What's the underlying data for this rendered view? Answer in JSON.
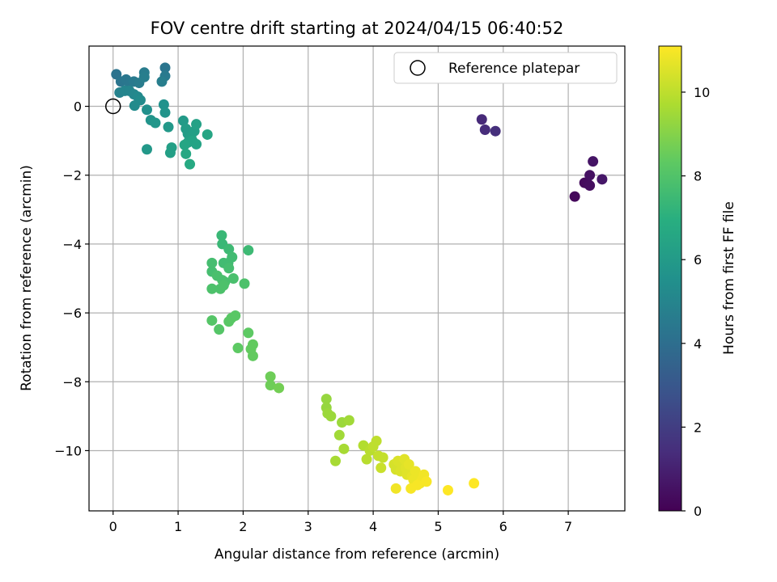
{
  "chart_data": {
    "type": "scatter",
    "title": "FOV centre drift starting at 2024/04/15 06:40:52",
    "xlabel": "Angular distance from reference (arcmin)",
    "ylabel": "Rotation from reference (arcmin)",
    "xlim": [
      -0.37,
      7.87
    ],
    "ylim": [
      -11.75,
      1.75
    ],
    "xticks": [
      0,
      1,
      2,
      3,
      4,
      5,
      6,
      7
    ],
    "yticks": [
      0,
      -2,
      -4,
      -6,
      -8,
      -10
    ],
    "grid": true,
    "colorscale": "viridis",
    "colorbar": {
      "label": "Hours from first FF file",
      "range": [
        0,
        11.1
      ],
      "ticks": [
        0,
        2,
        4,
        6,
        8,
        10
      ]
    },
    "legend": {
      "position": "top-right",
      "entries": [
        "Reference platepar"
      ]
    },
    "reference_point": {
      "x": 0,
      "y": 0
    },
    "series": [
      {
        "points": [
          {
            "x": 7.1,
            "y": -2.62,
            "c": 0.2
          },
          {
            "x": 7.25,
            "y": -2.22,
            "c": 0.3
          },
          {
            "x": 7.3,
            "y": -2.25,
            "c": 0.35
          },
          {
            "x": 7.33,
            "y": -2.3,
            "c": 0.4
          },
          {
            "x": 7.33,
            "y": -2.0,
            "c": 0.5
          },
          {
            "x": 7.38,
            "y": -1.6,
            "c": 0.6
          },
          {
            "x": 7.52,
            "y": -2.12,
            "c": 0.7
          },
          {
            "x": 5.67,
            "y": -0.38,
            "c": 1.3
          },
          {
            "x": 5.72,
            "y": -0.68,
            "c": 1.4
          },
          {
            "x": 5.88,
            "y": -0.72,
            "c": 1.5
          },
          {
            "x": 0.05,
            "y": 0.93,
            "c": 4.2
          },
          {
            "x": 0.12,
            "y": 0.72,
            "c": 4.3
          },
          {
            "x": 0.2,
            "y": 0.78,
            "c": 4.4
          },
          {
            "x": 0.25,
            "y": 0.68,
            "c": 4.4
          },
          {
            "x": 0.32,
            "y": 0.72,
            "c": 4.5
          },
          {
            "x": 0.4,
            "y": 0.68,
            "c": 4.6
          },
          {
            "x": 0.48,
            "y": 0.98,
            "c": 4.6
          },
          {
            "x": 0.48,
            "y": 0.85,
            "c": 4.7
          },
          {
            "x": 0.8,
            "y": 1.12,
            "c": 4.3
          },
          {
            "x": 0.8,
            "y": 0.88,
            "c": 4.5
          },
          {
            "x": 0.75,
            "y": 0.72,
            "c": 4.7
          },
          {
            "x": 0.1,
            "y": 0.4,
            "c": 4.9
          },
          {
            "x": 0.18,
            "y": 0.45,
            "c": 5.0
          },
          {
            "x": 0.25,
            "y": 0.45,
            "c": 5.0
          },
          {
            "x": 0.32,
            "y": 0.35,
            "c": 5.1
          },
          {
            "x": 0.38,
            "y": 0.28,
            "c": 5.2
          },
          {
            "x": 0.42,
            "y": 0.18,
            "c": 5.3
          },
          {
            "x": 0.33,
            "y": 0.02,
            "c": 5.3
          },
          {
            "x": 0.52,
            "y": -0.1,
            "c": 5.5
          },
          {
            "x": 0.78,
            "y": 0.05,
            "c": 5.6
          },
          {
            "x": 0.8,
            "y": -0.18,
            "c": 5.7
          },
          {
            "x": 0.58,
            "y": -0.4,
            "c": 5.7
          },
          {
            "x": 0.65,
            "y": -0.48,
            "c": 5.8
          },
          {
            "x": 0.85,
            "y": -0.6,
            "c": 5.9
          },
          {
            "x": 1.08,
            "y": -0.42,
            "c": 6.0
          },
          {
            "x": 1.12,
            "y": -0.65,
            "c": 6.1
          },
          {
            "x": 1.15,
            "y": -0.8,
            "c": 6.1
          },
          {
            "x": 1.2,
            "y": -0.88,
            "c": 6.2
          },
          {
            "x": 1.25,
            "y": -0.72,
            "c": 6.2
          },
          {
            "x": 1.28,
            "y": -0.52,
            "c": 6.3
          },
          {
            "x": 1.15,
            "y": -1.05,
            "c": 6.3
          },
          {
            "x": 1.22,
            "y": -1.0,
            "c": 6.4
          },
          {
            "x": 1.28,
            "y": -1.1,
            "c": 6.4
          },
          {
            "x": 1.1,
            "y": -1.12,
            "c": 6.5
          },
          {
            "x": 1.45,
            "y": -0.82,
            "c": 6.5
          },
          {
            "x": 0.52,
            "y": -1.25,
            "c": 5.9
          },
          {
            "x": 0.9,
            "y": -1.2,
            "c": 6.2
          },
          {
            "x": 0.88,
            "y": -1.35,
            "c": 6.2
          },
          {
            "x": 1.12,
            "y": -1.38,
            "c": 6.6
          },
          {
            "x": 1.18,
            "y": -1.68,
            "c": 6.7
          },
          {
            "x": 1.67,
            "y": -3.75,
            "c": 7.4
          },
          {
            "x": 1.68,
            "y": -4.0,
            "c": 7.4
          },
          {
            "x": 1.78,
            "y": -4.15,
            "c": 7.5
          },
          {
            "x": 2.08,
            "y": -4.18,
            "c": 7.5
          },
          {
            "x": 1.7,
            "y": -4.55,
            "c": 7.6
          },
          {
            "x": 1.77,
            "y": -4.55,
            "c": 7.6
          },
          {
            "x": 1.83,
            "y": -4.38,
            "c": 7.6
          },
          {
            "x": 1.52,
            "y": -4.55,
            "c": 7.7
          },
          {
            "x": 1.52,
            "y": -4.8,
            "c": 7.7
          },
          {
            "x": 1.78,
            "y": -4.7,
            "c": 7.7
          },
          {
            "x": 1.6,
            "y": -4.92,
            "c": 7.8
          },
          {
            "x": 1.68,
            "y": -5.05,
            "c": 7.8
          },
          {
            "x": 1.72,
            "y": -5.1,
            "c": 7.8
          },
          {
            "x": 1.85,
            "y": -5.0,
            "c": 7.8
          },
          {
            "x": 2.02,
            "y": -5.15,
            "c": 7.9
          },
          {
            "x": 1.52,
            "y": -5.3,
            "c": 7.9
          },
          {
            "x": 1.65,
            "y": -5.3,
            "c": 7.9
          },
          {
            "x": 1.7,
            "y": -5.2,
            "c": 7.9
          },
          {
            "x": 1.52,
            "y": -6.22,
            "c": 8.1
          },
          {
            "x": 1.63,
            "y": -6.48,
            "c": 8.1
          },
          {
            "x": 1.78,
            "y": -6.25,
            "c": 8.2
          },
          {
            "x": 1.82,
            "y": -6.15,
            "c": 8.2
          },
          {
            "x": 1.88,
            "y": -6.08,
            "c": 8.2
          },
          {
            "x": 2.08,
            "y": -6.58,
            "c": 8.3
          },
          {
            "x": 1.92,
            "y": -7.02,
            "c": 8.3
          },
          {
            "x": 2.12,
            "y": -7.05,
            "c": 8.4
          },
          {
            "x": 2.15,
            "y": -6.92,
            "c": 8.4
          },
          {
            "x": 2.15,
            "y": -7.25,
            "c": 8.4
          },
          {
            "x": 2.42,
            "y": -7.85,
            "c": 8.6
          },
          {
            "x": 2.42,
            "y": -8.1,
            "c": 8.6
          },
          {
            "x": 2.55,
            "y": -8.18,
            "c": 8.7
          },
          {
            "x": 3.28,
            "y": -8.5,
            "c": 9.3
          },
          {
            "x": 3.28,
            "y": -8.75,
            "c": 9.3
          },
          {
            "x": 3.3,
            "y": -8.92,
            "c": 9.4
          },
          {
            "x": 3.35,
            "y": -9.0,
            "c": 9.4
          },
          {
            "x": 3.52,
            "y": -9.18,
            "c": 9.4
          },
          {
            "x": 3.63,
            "y": -9.12,
            "c": 9.5
          },
          {
            "x": 3.48,
            "y": -9.55,
            "c": 9.5
          },
          {
            "x": 3.55,
            "y": -9.95,
            "c": 9.6
          },
          {
            "x": 3.42,
            "y": -10.3,
            "c": 9.6
          },
          {
            "x": 3.85,
            "y": -9.85,
            "c": 9.8
          },
          {
            "x": 3.9,
            "y": -10.25,
            "c": 9.9
          },
          {
            "x": 3.95,
            "y": -10.0,
            "c": 9.9
          },
          {
            "x": 4.0,
            "y": -9.88,
            "c": 10.0
          },
          {
            "x": 4.05,
            "y": -9.72,
            "c": 10.0
          },
          {
            "x": 4.08,
            "y": -10.15,
            "c": 10.1
          },
          {
            "x": 4.15,
            "y": -10.2,
            "c": 10.1
          },
          {
            "x": 4.12,
            "y": -10.5,
            "c": 10.2
          },
          {
            "x": 4.32,
            "y": -10.4,
            "c": 10.4
          },
          {
            "x": 4.35,
            "y": -10.55,
            "c": 10.4
          },
          {
            "x": 4.38,
            "y": -10.3,
            "c": 10.5
          },
          {
            "x": 4.42,
            "y": -10.6,
            "c": 10.5
          },
          {
            "x": 4.45,
            "y": -10.45,
            "c": 10.5
          },
          {
            "x": 4.48,
            "y": -10.25,
            "c": 10.6
          },
          {
            "x": 4.5,
            "y": -10.5,
            "c": 10.6
          },
          {
            "x": 4.52,
            "y": -10.7,
            "c": 10.6
          },
          {
            "x": 4.55,
            "y": -10.4,
            "c": 10.7
          },
          {
            "x": 4.6,
            "y": -10.75,
            "c": 10.7
          },
          {
            "x": 4.62,
            "y": -10.85,
            "c": 10.8
          },
          {
            "x": 4.65,
            "y": -10.6,
            "c": 10.8
          },
          {
            "x": 4.7,
            "y": -10.75,
            "c": 10.8
          },
          {
            "x": 4.72,
            "y": -10.95,
            "c": 10.9
          },
          {
            "x": 4.75,
            "y": -10.85,
            "c": 10.9
          },
          {
            "x": 4.78,
            "y": -10.7,
            "c": 10.9
          },
          {
            "x": 4.82,
            "y": -10.9,
            "c": 11.0
          },
          {
            "x": 4.35,
            "y": -11.1,
            "c": 10.9
          },
          {
            "x": 4.58,
            "y": -11.1,
            "c": 11.0
          },
          {
            "x": 4.68,
            "y": -11.0,
            "c": 11.0
          },
          {
            "x": 5.15,
            "y": -11.15,
            "c": 11.1
          },
          {
            "x": 5.55,
            "y": -10.95,
            "c": 11.1
          }
        ]
      }
    ]
  }
}
